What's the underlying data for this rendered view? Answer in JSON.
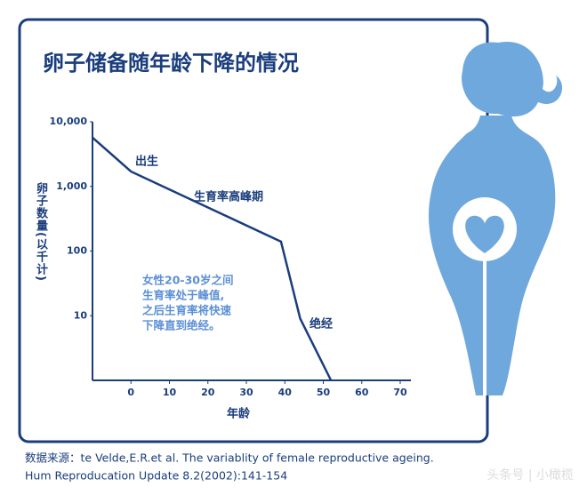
{
  "chart_data": {
    "type": "line",
    "title": "卵子储备随年龄下降的情况",
    "x_label": "年龄",
    "y_label": "卵子数量(以千计)",
    "x": [
      -10,
      0,
      39,
      44,
      52
    ],
    "series": [
      {
        "name": null,
        "color": "#1a3d7c",
        "values": [
          5700,
          1700,
          140,
          9,
          1
        ]
      }
    ],
    "xlim": [
      -10,
      70
    ],
    "xticks": [
      0,
      10,
      20,
      30,
      40,
      50,
      60,
      70
    ],
    "ylim": [
      1,
      10000
    ],
    "log_y": true,
    "yticks": [
      10,
      100,
      {
        "value": 1000,
        "label": "1,000"
      },
      {
        "value": 10000,
        "label": "10,000"
      }
    ],
    "annotations": [
      "出生",
      "生育率高峰期",
      "绝经"
    ],
    "note": [
      "女性20-30岁之间",
      "生育率处于峰值,",
      "之后生育率将快速",
      "下降直到绝经。"
    ],
    "note_color": "#5b8fd6",
    "source": [
      "数据来源：te Velde,E.R.et al. The variablity of female reproductive ageing.",
      "Hum Reproducation Update 8.2(2002):141-154"
    ],
    "watermark": "头条号 | 小橄榄"
  }
}
